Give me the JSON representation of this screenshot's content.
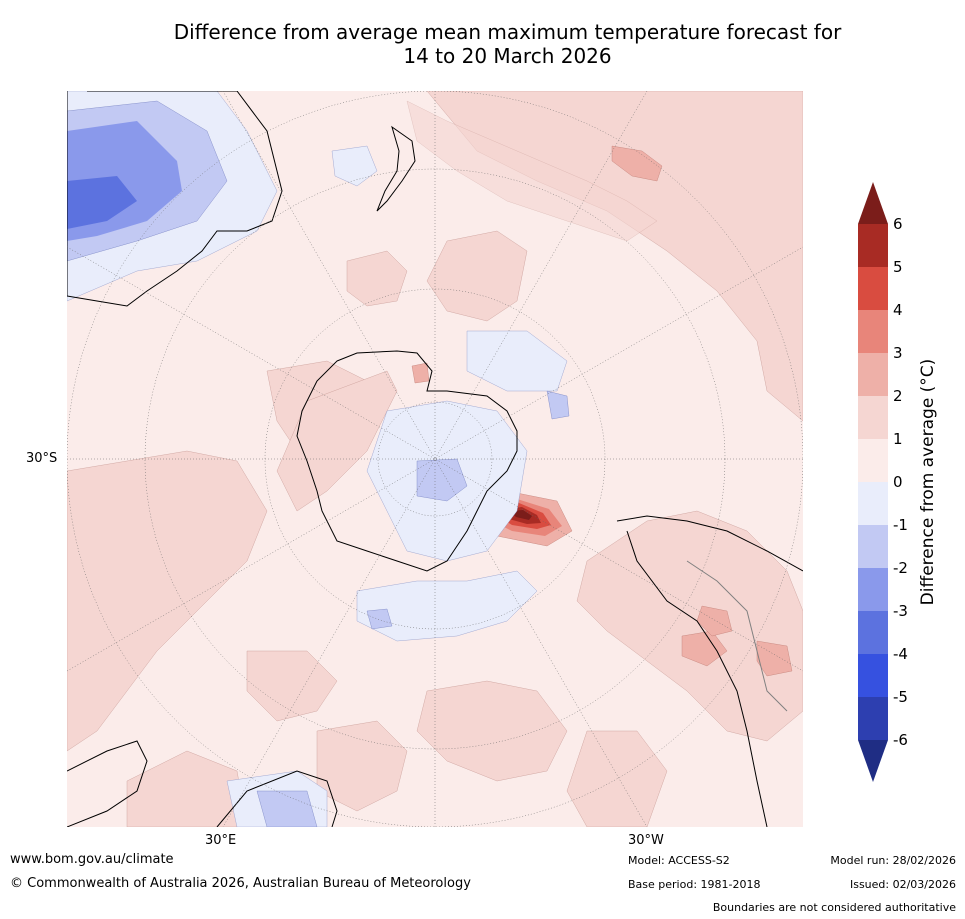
{
  "title": {
    "line1": "Difference from average mean maximum temperature forecast for",
    "line2": "14 to 20 March 2026"
  },
  "map": {
    "projection": "south-polar-stereographic",
    "labels": {
      "lat_30s": "30°S",
      "lon_30e": "30°E",
      "lon_30w": "30°W"
    },
    "features": [
      "Antarctica",
      "Australia",
      "New Zealand",
      "South America",
      "Africa"
    ]
  },
  "colorbar": {
    "label": "Difference from average (°C)",
    "ticks": [
      "6",
      "5",
      "4",
      "3",
      "2",
      "1",
      "0",
      "-1",
      "-2",
      "-3",
      "-4",
      "-5",
      "-6"
    ],
    "colors": [
      "#7b1d1a",
      "#a82b24",
      "#d94c40",
      "#e8857a",
      "#eeb0a8",
      "#f5d6d2",
      "#fbecea",
      "#e9edfb",
      "#c2c9f3",
      "#8a99eb",
      "#5c72df",
      "#3651e0",
      "#2d3fb0",
      "#1f2d84"
    ]
  },
  "footer": {
    "website": "www.bom.gov.au/climate",
    "copyright": "© Commonwealth of Australia 2026, Australian Bureau of Meteorology",
    "model": "Model: ACCESS-S2",
    "base_period": "Base period: 1981-2018",
    "model_run": "Model run: 28/02/2026",
    "issued": "Issued: 02/03/2026",
    "boundaries": "Boundaries are not considered authoritative"
  }
}
